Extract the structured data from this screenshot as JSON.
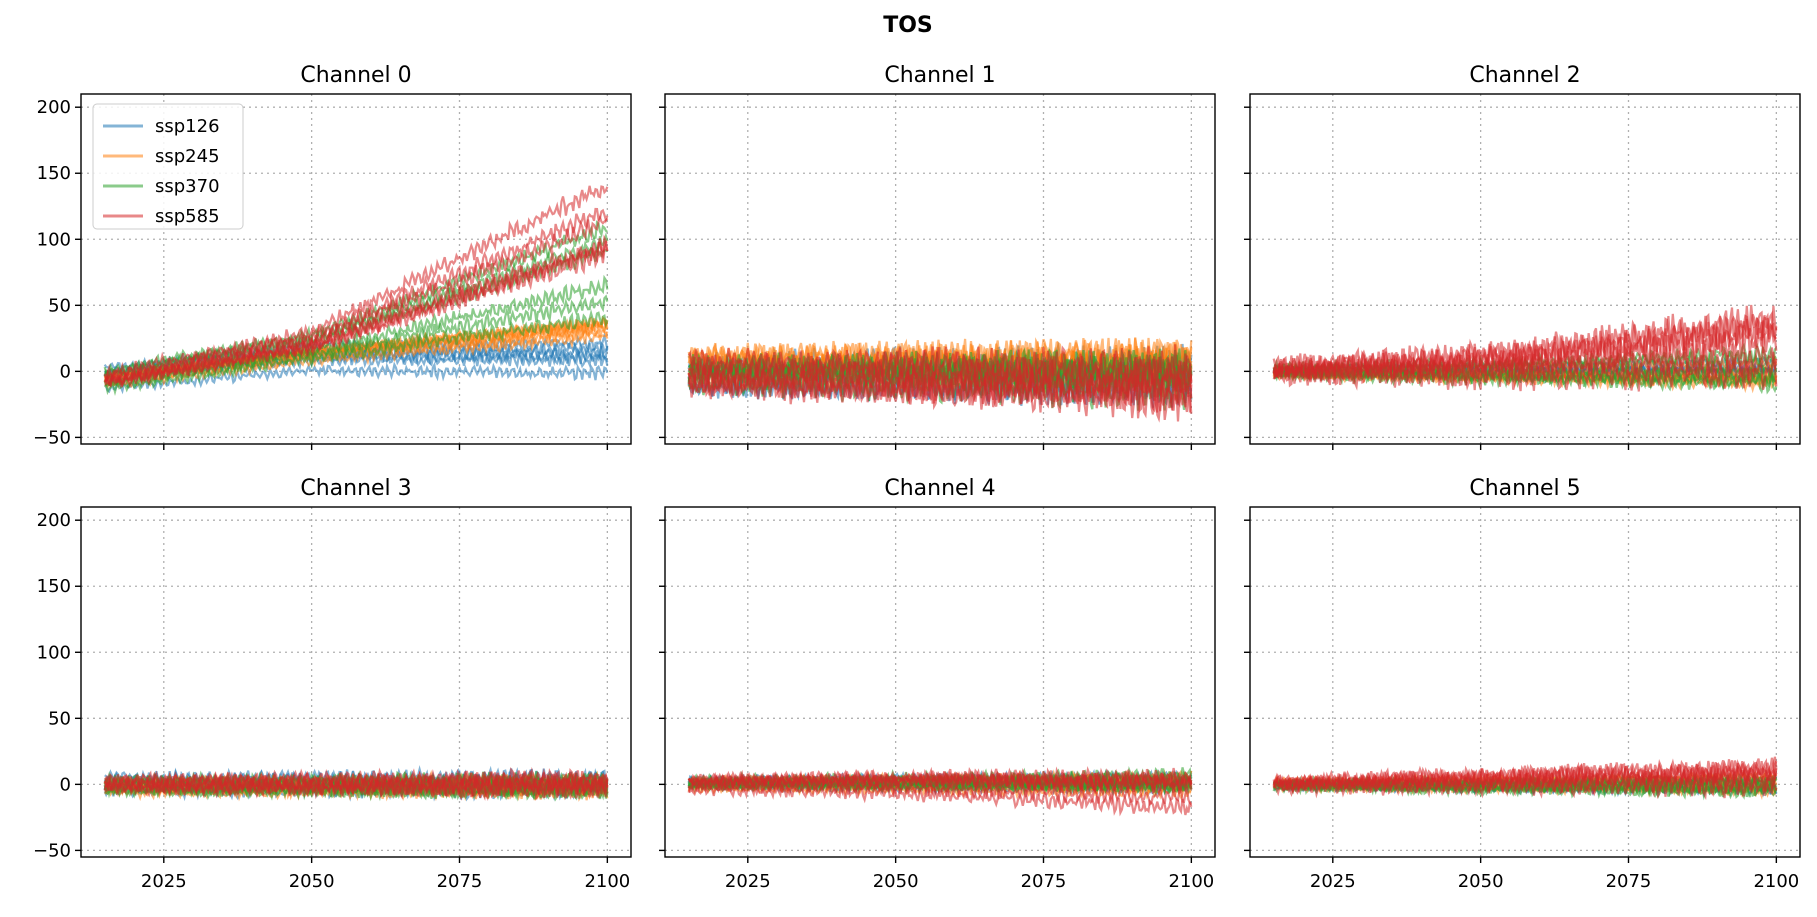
{
  "chart_data": {
    "type": "line",
    "title": "TOS",
    "x_range": [
      2015,
      2100
    ],
    "xlim": [
      2011,
      2104
    ],
    "ylim": [
      -55,
      210
    ],
    "x_ticks": [
      2025,
      2050,
      2075,
      2100
    ],
    "y_ticks": [
      -50,
      0,
      50,
      100,
      150,
      200
    ],
    "grid": true,
    "grid_style": "dotted",
    "legend": {
      "placement": "top-left",
      "in_panel": 0,
      "entries": [
        "ssp126",
        "ssp245",
        "ssp370",
        "ssp585"
      ]
    },
    "series_colors": {
      "ssp126": "#1f77b4",
      "ssp245": "#ff7f0e",
      "ssp370": "#2ca02c",
      "ssp585": "#d62728"
    },
    "panels": [
      {
        "title": "Channel 0",
        "series": [
          {
            "name": "ssp126",
            "x": [
              2015,
              2050,
              2100
            ],
            "y_center": [
              -5,
              10,
              10
            ],
            "spread": [
              8,
              10,
              12
            ],
            "noise": 5
          },
          {
            "name": "ssp245",
            "x": [
              2015,
              2050,
              2100
            ],
            "y_center": [
              -5,
              14,
              35
            ],
            "spread": [
              8,
              8,
              12
            ],
            "noise": 5
          },
          {
            "name": "ssp370",
            "x": [
              2015,
              2050,
              2100
            ],
            "y_center": [
              -5,
              20,
              80
            ],
            "spread": [
              8,
              10,
              40
            ],
            "noise": 6
          },
          {
            "name": "ssp585",
            "x": [
              2015,
              2050,
              2100
            ],
            "y_center": [
              -5,
              25,
              120
            ],
            "spread": [
              8,
              14,
              60
            ],
            "noise": 7
          }
        ]
      },
      {
        "title": "Channel 1",
        "series": [
          {
            "name": "ssp126",
            "x": [
              2015,
              2050,
              2100
            ],
            "y_center": [
              0,
              0,
              0
            ],
            "spread": [
              12,
              12,
              12
            ],
            "noise": 14
          },
          {
            "name": "ssp245",
            "x": [
              2015,
              2050,
              2100
            ],
            "y_center": [
              0,
              0,
              0
            ],
            "spread": [
              12,
              12,
              12
            ],
            "noise": 14
          },
          {
            "name": "ssp370",
            "x": [
              2015,
              2050,
              2100
            ],
            "y_center": [
              0,
              0,
              -2
            ],
            "spread": [
              12,
              12,
              14
            ],
            "noise": 14
          },
          {
            "name": "ssp585",
            "x": [
              2015,
              2050,
              2100
            ],
            "y_center": [
              0,
              -2,
              -6
            ],
            "spread": [
              12,
              14,
              16
            ],
            "noise": 15
          }
        ]
      },
      {
        "title": "Channel 2",
        "series": [
          {
            "name": "ssp126",
            "x": [
              2015,
              2050,
              2100
            ],
            "y_center": [
              0,
              0,
              0
            ],
            "spread": [
              3,
              5,
              8
            ],
            "noise": 3
          },
          {
            "name": "ssp245",
            "x": [
              2015,
              2050,
              2100
            ],
            "y_center": [
              0,
              0,
              0
            ],
            "spread": [
              3,
              6,
              10
            ],
            "noise": 4
          },
          {
            "name": "ssp370",
            "x": [
              2015,
              2050,
              2100
            ],
            "y_center": [
              0,
              0,
              2
            ],
            "spread": [
              3,
              7,
              14
            ],
            "noise": 6
          },
          {
            "name": "ssp585",
            "x": [
              2015,
              2050,
              2100
            ],
            "y_center": [
              0,
              3,
              15
            ],
            "spread": [
              3,
              10,
              30
            ],
            "noise": 14
          }
        ]
      },
      {
        "title": "Channel 3",
        "series": [
          {
            "name": "ssp126",
            "x": [
              2015,
              2050,
              2100
            ],
            "y_center": [
              0,
              0,
              0
            ],
            "spread": [
              6,
              6,
              6
            ],
            "noise": 6
          },
          {
            "name": "ssp245",
            "x": [
              2015,
              2050,
              2100
            ],
            "y_center": [
              0,
              0,
              0
            ],
            "spread": [
              6,
              6,
              6
            ],
            "noise": 6
          },
          {
            "name": "ssp370",
            "x": [
              2015,
              2050,
              2100
            ],
            "y_center": [
              0,
              0,
              0
            ],
            "spread": [
              6,
              6,
              7
            ],
            "noise": 6
          },
          {
            "name": "ssp585",
            "x": [
              2015,
              2050,
              2100
            ],
            "y_center": [
              0,
              0,
              0
            ],
            "spread": [
              6,
              7,
              8
            ],
            "noise": 7
          }
        ]
      },
      {
        "title": "Channel 4",
        "series": [
          {
            "name": "ssp126",
            "x": [
              2015,
              2050,
              2100
            ],
            "y_center": [
              0,
              0,
              0
            ],
            "spread": [
              4,
              5,
              6
            ],
            "noise": 4
          },
          {
            "name": "ssp245",
            "x": [
              2015,
              2050,
              2100
            ],
            "y_center": [
              0,
              0,
              0
            ],
            "spread": [
              4,
              5,
              7
            ],
            "noise": 4
          },
          {
            "name": "ssp370",
            "x": [
              2015,
              2050,
              2100
            ],
            "y_center": [
              0,
              0,
              0
            ],
            "spread": [
              4,
              6,
              9
            ],
            "noise": 5
          },
          {
            "name": "ssp585",
            "x": [
              2015,
              2050,
              2100
            ],
            "y_center": [
              0,
              0,
              -6
            ],
            "spread": [
              4,
              7,
              14
            ],
            "noise": 7
          }
        ]
      },
      {
        "title": "Channel 5",
        "series": [
          {
            "name": "ssp126",
            "x": [
              2015,
              2050,
              2100
            ],
            "y_center": [
              0,
              0,
              0
            ],
            "spread": [
              3,
              4,
              5
            ],
            "noise": 3
          },
          {
            "name": "ssp245",
            "x": [
              2015,
              2050,
              2100
            ],
            "y_center": [
              0,
              0,
              0
            ],
            "spread": [
              3,
              4,
              6
            ],
            "noise": 4
          },
          {
            "name": "ssp370",
            "x": [
              2015,
              2050,
              2100
            ],
            "y_center": [
              0,
              0,
              1
            ],
            "spread": [
              3,
              5,
              8
            ],
            "noise": 5
          },
          {
            "name": "ssp585",
            "x": [
              2015,
              2050,
              2100
            ],
            "y_center": [
              0,
              2,
              5
            ],
            "spread": [
              3,
              6,
              10
            ],
            "noise": 8
          }
        ]
      }
    ]
  }
}
